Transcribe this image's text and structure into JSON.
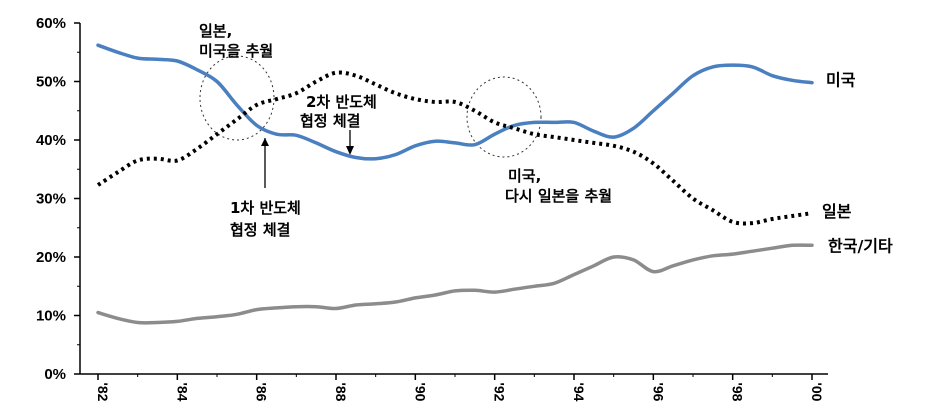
{
  "chart_data": {
    "type": "line",
    "title": "",
    "xlabel": "",
    "ylabel": "",
    "xlim": [
      1982,
      2000
    ],
    "ylim": [
      0,
      60
    ],
    "y_ticks": [
      0,
      10,
      20,
      30,
      40,
      50,
      60
    ],
    "y_tick_labels": [
      "0%",
      "10%",
      "20%",
      "30%",
      "40%",
      "50%",
      "60%"
    ],
    "x_ticks": [
      1982,
      1984,
      1986,
      1988,
      1990,
      1992,
      1994,
      1996,
      1998,
      2000
    ],
    "x_tick_labels": [
      "'82",
      "'84",
      "'86",
      "'88",
      "'90",
      "'92",
      "'94",
      "'96",
      "'98",
      "'00"
    ],
    "grid": false,
    "legend": "inline-right",
    "series": [
      {
        "name": "미국",
        "color": "#4a7fc0",
        "style": "solid",
        "x": [
          1982,
          1982.5,
          1983,
          1983.5,
          1984,
          1984.5,
          1985,
          1985.5,
          1986,
          1986.5,
          1987,
          1987.5,
          1988,
          1988.5,
          1989,
          1989.5,
          1990,
          1990.5,
          1991,
          1991.5,
          1992,
          1992.5,
          1993,
          1993.5,
          1994,
          1994.5,
          1995,
          1995.5,
          1996,
          1996.5,
          1997,
          1997.5,
          1998,
          1998.5,
          1999,
          1999.5,
          2000
        ],
        "y": [
          56.2,
          55,
          54,
          53.8,
          53.5,
          52,
          50,
          46,
          42.5,
          41,
          40.8,
          39.5,
          38,
          37,
          36.8,
          37.5,
          39,
          39.8,
          39.5,
          39.2,
          41,
          42.5,
          43,
          43,
          43,
          41.5,
          40.5,
          42,
          45,
          48,
          51,
          52.5,
          52.8,
          52.5,
          51,
          50.2,
          49.8
        ]
      },
      {
        "name": "일본",
        "color": "#000000",
        "style": "dotted",
        "x": [
          1982,
          1982.5,
          1983,
          1983.5,
          1984,
          1984.5,
          1985,
          1985.5,
          1986,
          1986.5,
          1987,
          1987.5,
          1988,
          1988.5,
          1989,
          1989.5,
          1990,
          1990.5,
          1991,
          1991.5,
          1992,
          1992.5,
          1993,
          1993.5,
          1994,
          1994.5,
          1995,
          1995.5,
          1996,
          1996.5,
          1997,
          1997.5,
          1998,
          1998.5,
          1999,
          1999.5,
          2000
        ],
        "y": [
          32.3,
          34.5,
          36.5,
          36.8,
          36.5,
          38.5,
          41,
          43.5,
          46,
          47,
          48,
          50,
          51.5,
          51,
          49.5,
          48,
          47,
          46.5,
          46.5,
          45,
          43,
          42,
          41,
          40.5,
          40,
          39.5,
          39,
          38,
          36,
          33,
          30,
          28,
          26,
          25.8,
          26.5,
          27,
          27.5
        ]
      },
      {
        "name": "한국/기타",
        "color": "#8c8c8c",
        "style": "solid",
        "x": [
          1982,
          1982.5,
          1983,
          1983.5,
          1984,
          1984.5,
          1985,
          1985.5,
          1986,
          1986.5,
          1987,
          1987.5,
          1988,
          1988.5,
          1989,
          1989.5,
          1990,
          1990.5,
          1991,
          1991.5,
          1992,
          1992.5,
          1993,
          1993.5,
          1994,
          1994.5,
          1995,
          1995.5,
          1996,
          1996.5,
          1997,
          1997.5,
          1998,
          1998.5,
          1999,
          1999.5,
          2000
        ],
        "y": [
          10.5,
          9.5,
          8.8,
          8.8,
          9,
          9.5,
          9.8,
          10.2,
          11,
          11.3,
          11.5,
          11.5,
          11.2,
          11.8,
          12,
          12.3,
          13,
          13.5,
          14.2,
          14.3,
          14,
          14.5,
          15,
          15.5,
          17,
          18.5,
          20,
          19.5,
          17.5,
          18.5,
          19.5,
          20.2,
          20.5,
          21,
          21.5,
          22,
          22
        ]
      }
    ],
    "annotations": [
      {
        "lines": [
          "일본,",
          "미국을 추월"
        ]
      },
      {
        "lines": [
          "2차 반도체",
          "협정 체결"
        ]
      },
      {
        "lines": [
          "1차 반도체",
          "협정 체결"
        ]
      },
      {
        "lines": [
          "미국,",
          "다시 일본을 추월"
        ]
      }
    ]
  }
}
